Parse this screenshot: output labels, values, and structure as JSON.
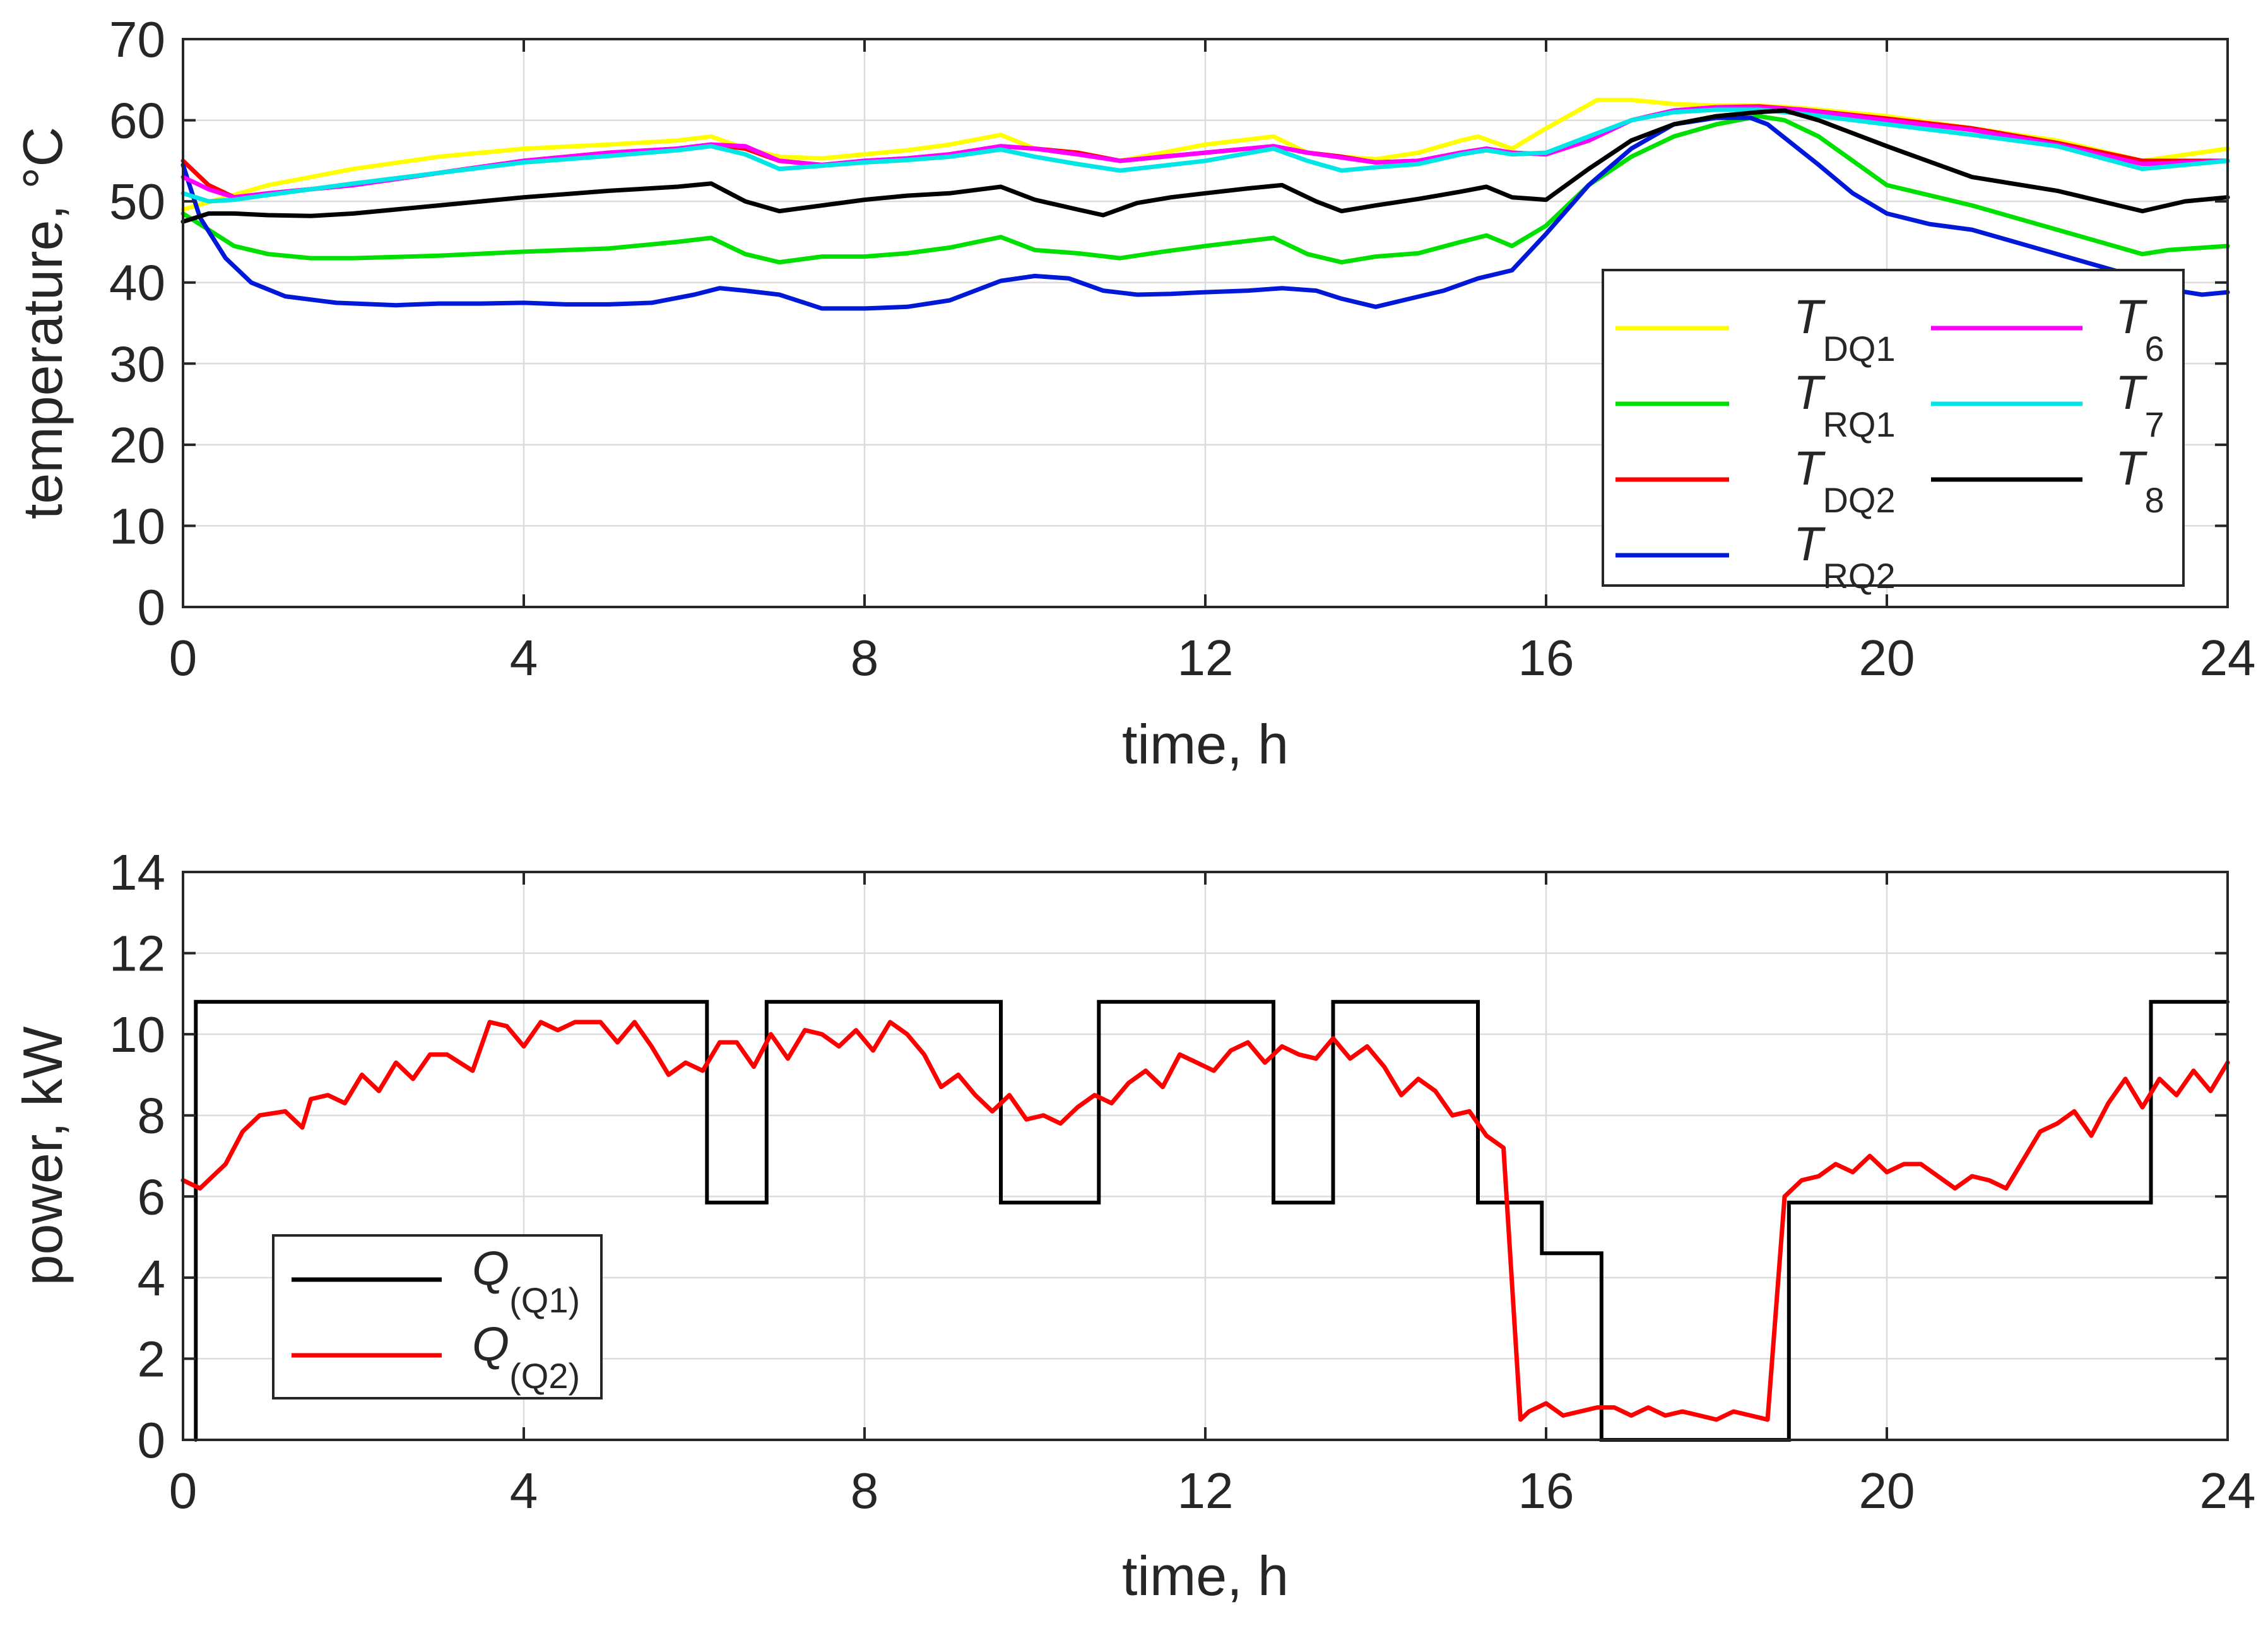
{
  "chart_data": [
    {
      "type": "line",
      "xlabel": "time, h",
      "ylabel": "temperature, °C",
      "xlim": [
        0,
        24
      ],
      "ylim": [
        0,
        70
      ],
      "xticks": [
        "0",
        "4",
        "8",
        "12",
        "16",
        "20",
        "24"
      ],
      "yticks": [
        "0",
        "10",
        "20",
        "30",
        "40",
        "50",
        "60",
        "70"
      ],
      "grid": true,
      "legend_position": "lower-right",
      "series": [
        {
          "name": "T",
          "sub": "DQ1",
          "color": "#ffff00",
          "x": [
            0,
            0.5,
            1,
            2,
            3,
            4,
            5,
            5.8,
            6.2,
            6.6,
            7,
            7.5,
            8,
            8.5,
            9,
            9.6,
            10,
            10.5,
            11,
            11.5,
            12,
            12.8,
            13.2,
            13.6,
            14,
            14.5,
            15,
            15.2,
            15.6,
            16,
            16.6,
            17,
            17.5,
            18,
            18.5,
            19,
            19.5,
            20,
            21,
            22,
            23,
            24
          ],
          "y": [
            49,
            50.5,
            52,
            54,
            55.5,
            56.5,
            57,
            57.5,
            58,
            56.5,
            55.5,
            55.3,
            55.8,
            56.3,
            57,
            58.2,
            56.5,
            56,
            55,
            56,
            57,
            58,
            56,
            55.5,
            55.2,
            56,
            57.5,
            58,
            56.5,
            59,
            62.5,
            62.5,
            62,
            61.8,
            61.8,
            61.5,
            61,
            60.5,
            59,
            57.5,
            55,
            56.5
          ]
        },
        {
          "name": "T",
          "sub": "RQ1",
          "color": "#00e000",
          "x": [
            0,
            0.3,
            0.6,
            1,
            1.5,
            2,
            3,
            4,
            5,
            5.8,
            6.2,
            6.6,
            7,
            7.5,
            8,
            8.5,
            9,
            9.6,
            10,
            10.5,
            11,
            11.5,
            12,
            12.8,
            13.2,
            13.6,
            14,
            14.5,
            15,
            15.3,
            15.6,
            16,
            16.5,
            17,
            17.5,
            18,
            18.5,
            18.8,
            19.2,
            19.6,
            20,
            21,
            22,
            23,
            23.3,
            24
          ],
          "y": [
            48.5,
            46.5,
            44.5,
            43.5,
            43,
            43,
            43.3,
            43.8,
            44.2,
            45,
            45.5,
            43.5,
            42.5,
            43.2,
            43.2,
            43.6,
            44.3,
            45.6,
            44,
            43.6,
            43,
            43.8,
            44.5,
            45.5,
            43.5,
            42.5,
            43.2,
            43.6,
            45,
            45.8,
            44.5,
            47,
            52,
            55.5,
            58,
            59.5,
            60.5,
            60,
            58,
            55,
            52,
            49.5,
            46.5,
            43.5,
            44,
            44.5
          ]
        },
        {
          "name": "T",
          "sub": "DQ2",
          "color": "#ff0000",
          "x": [
            0,
            0.3,
            0.6,
            1,
            2,
            3,
            4,
            5,
            5.8,
            6.2,
            6.6,
            7,
            7.5,
            8,
            8.5,
            9,
            9.6,
            10,
            10.5,
            11,
            11.5,
            12,
            12.8,
            13.2,
            13.6,
            14,
            14.5,
            15,
            15.3,
            15.6,
            16,
            16.5,
            17,
            17.5,
            18,
            18.5,
            19,
            20,
            21,
            22,
            23,
            24
          ],
          "y": [
            55,
            52,
            50.5,
            51,
            52,
            53.5,
            55,
            56,
            56.5,
            57,
            56.5,
            55,
            54.5,
            55,
            55.3,
            55.8,
            56.8,
            56.5,
            56,
            55,
            55.5,
            56,
            56.8,
            56,
            55.5,
            54.8,
            55,
            56,
            56.5,
            56,
            55.8,
            57.5,
            60,
            61.2,
            61.6,
            61.7,
            61.3,
            60.2,
            59,
            57.2,
            55,
            55
          ]
        },
        {
          "name": "T",
          "sub": "RQ2",
          "color": "#0018d8",
          "x": [
            0,
            0.2,
            0.5,
            0.8,
            1.2,
            1.8,
            2.5,
            3,
            3.5,
            4,
            4.5,
            5,
            5.5,
            6,
            6.3,
            6.6,
            7,
            7.5,
            8,
            8.5,
            9,
            9.6,
            10,
            10.4,
            10.8,
            11.2,
            11.6,
            12,
            12.5,
            12.9,
            13.3,
            13.6,
            14,
            14.4,
            14.8,
            15.2,
            15.6,
            16,
            16.5,
            17,
            17.5,
            18,
            18.4,
            18.6,
            18.9,
            19.2,
            19.6,
            20,
            20.5,
            21,
            21.5,
            22,
            22.5,
            23,
            23.4,
            23.7,
            24
          ],
          "y": [
            54.5,
            48,
            43,
            40,
            38.3,
            37.5,
            37.2,
            37.4,
            37.4,
            37.5,
            37.3,
            37.3,
            37.5,
            38.5,
            39.3,
            39,
            38.5,
            36.8,
            36.8,
            37,
            37.8,
            40.2,
            40.8,
            40.5,
            39,
            38.5,
            38.6,
            38.8,
            39,
            39.3,
            39,
            38,
            37,
            38,
            39,
            40.5,
            41.5,
            46,
            52,
            56.5,
            59.5,
            60.3,
            60.3,
            59.5,
            57,
            54.5,
            51,
            48.5,
            47.2,
            46.5,
            45,
            43.5,
            42,
            40.5,
            39,
            38.5,
            38.8
          ]
        },
        {
          "name": "T",
          "sub": "6",
          "color": "#ff00ff",
          "x": [
            0,
            0.3,
            0.6,
            1,
            2,
            3,
            4,
            5,
            5.8,
            6.2,
            6.6,
            7,
            7.5,
            8,
            8.5,
            9,
            9.6,
            10,
            10.5,
            11,
            11.5,
            12,
            12.8,
            13.2,
            13.6,
            14,
            14.5,
            15,
            15.3,
            15.6,
            16,
            16.5,
            17,
            17.5,
            18,
            18.5,
            19,
            20,
            21,
            22,
            23,
            24
          ],
          "y": [
            53,
            51.5,
            50.5,
            51,
            52,
            53.5,
            55,
            56,
            56.5,
            57,
            56.8,
            55,
            54.5,
            55,
            55.3,
            55.8,
            56.8,
            56.5,
            55.8,
            55,
            55.5,
            56,
            56.8,
            56,
            55.4,
            54.8,
            55,
            56,
            56.5,
            56,
            55.8,
            57.5,
            60,
            61.2,
            61.6,
            61.6,
            61.3,
            60,
            58.8,
            57,
            54.6,
            55
          ]
        },
        {
          "name": "T",
          "sub": "7",
          "color": "#00e5e5",
          "x": [
            0,
            0.3,
            0.6,
            1,
            2,
            3,
            4,
            5,
            5.8,
            6.2,
            6.6,
            7,
            7.5,
            8,
            8.5,
            9,
            9.6,
            10,
            10.5,
            11,
            11.5,
            12,
            12.8,
            13.2,
            13.6,
            14,
            14.5,
            15,
            15.3,
            15.6,
            16,
            16.5,
            17,
            17.5,
            18,
            18.5,
            19,
            20,
            21,
            22,
            23,
            24
          ],
          "y": [
            51,
            50,
            50.2,
            50.8,
            52.2,
            53.5,
            54.8,
            55.6,
            56.3,
            56.8,
            55.8,
            54,
            54.4,
            54.8,
            55.1,
            55.5,
            56.4,
            55.5,
            54.6,
            53.8,
            54.4,
            55,
            56.5,
            55,
            53.8,
            54.2,
            54.6,
            55.8,
            56.3,
            55.8,
            56,
            58,
            60,
            61,
            61.3,
            61.3,
            60.8,
            59.5,
            58.2,
            56.8,
            54,
            55
          ]
        },
        {
          "name": "T",
          "sub": "8",
          "color": "#000000",
          "x": [
            0,
            0.3,
            0.6,
            1,
            1.5,
            2,
            3,
            4,
            5,
            5.8,
            6.2,
            6.6,
            7,
            7.5,
            8,
            8.5,
            9,
            9.6,
            10,
            10.5,
            10.8,
            11.2,
            11.6,
            12,
            12.5,
            12.9,
            13.3,
            13.6,
            14,
            14.5,
            15,
            15.3,
            15.6,
            16,
            16.5,
            17,
            17.5,
            18,
            18.5,
            18.8,
            19.2,
            20,
            21,
            22,
            23,
            23.5,
            24
          ],
          "y": [
            47.5,
            48.5,
            48.5,
            48.3,
            48.2,
            48.5,
            49.5,
            50.5,
            51.3,
            51.8,
            52.2,
            50,
            48.8,
            49.5,
            50.2,
            50.7,
            51,
            51.8,
            50.2,
            49,
            48.3,
            49.8,
            50.5,
            51,
            51.6,
            52,
            50,
            48.8,
            49.5,
            50.3,
            51.2,
            51.8,
            50.5,
            50.2,
            54,
            57.5,
            59.5,
            60.5,
            61,
            61.2,
            60,
            56.8,
            53,
            51.3,
            48.8,
            50,
            50.5
          ]
        }
      ]
    },
    {
      "type": "line",
      "xlabel": "time, h",
      "ylabel": "power, kW",
      "xlim": [
        0,
        24
      ],
      "ylim": [
        0,
        14
      ],
      "xticks": [
        "0",
        "4",
        "8",
        "12",
        "16",
        "20",
        "24"
      ],
      "yticks": [
        "0",
        "2",
        "4",
        "6",
        "8",
        "10",
        "12",
        "14"
      ],
      "grid": true,
      "legend_position": "lower-left",
      "series": [
        {
          "name": "Q",
          "sub": "(Q1)",
          "color": "#000000",
          "drawstyle": "steps",
          "x": [
            0.15,
            0.15,
            6.15,
            6.15,
            6.85,
            6.85,
            9.6,
            9.6,
            10.75,
            10.75,
            12.8,
            12.8,
            13.5,
            13.5,
            15.2,
            15.2,
            15.95,
            15.95,
            16.65,
            16.65,
            18.85,
            18.85,
            23.1,
            23.1,
            24
          ],
          "y": [
            0,
            10.8,
            10.8,
            5.85,
            5.85,
            10.8,
            10.8,
            5.85,
            5.85,
            10.8,
            10.8,
            5.85,
            5.85,
            10.8,
            10.8,
            5.85,
            5.85,
            4.6,
            4.6,
            0,
            0,
            5.85,
            5.85,
            10.8,
            10.8
          ]
        },
        {
          "name": "Q",
          "sub": "(Q2)",
          "color": "#ff0000",
          "x": [
            0,
            0.2,
            0.5,
            0.7,
            0.9,
            1.2,
            1.4,
            1.5,
            1.7,
            1.9,
            2.1,
            2.3,
            2.5,
            2.7,
            2.9,
            3.1,
            3.4,
            3.6,
            3.8,
            4,
            4.2,
            4.4,
            4.6,
            4.9,
            5.1,
            5.3,
            5.5,
            5.7,
            5.9,
            6.1,
            6.3,
            6.5,
            6.7,
            6.9,
            7.1,
            7.3,
            7.5,
            7.7,
            7.9,
            8.1,
            8.3,
            8.5,
            8.7,
            8.9,
            9.1,
            9.3,
            9.5,
            9.7,
            9.9,
            10.1,
            10.3,
            10.5,
            10.7,
            10.9,
            11.1,
            11.3,
            11.5,
            11.7,
            11.9,
            12.1,
            12.3,
            12.5,
            12.7,
            12.9,
            13.1,
            13.3,
            13.5,
            13.7,
            13.9,
            14.1,
            14.3,
            14.5,
            14.7,
            14.9,
            15.1,
            15.3,
            15.5,
            15.7,
            15.8,
            16,
            16.2,
            16.4,
            16.6,
            16.8,
            17,
            17.2,
            17.4,
            17.6,
            17.8,
            18,
            18.2,
            18.4,
            18.6,
            18.8,
            19,
            19.2,
            19.4,
            19.6,
            19.8,
            20,
            20.2,
            20.4,
            20.6,
            20.8,
            21,
            21.2,
            21.4,
            21.6,
            21.8,
            22,
            22.2,
            22.4,
            22.6,
            22.8,
            23,
            23.2,
            23.4,
            23.6,
            23.8,
            24
          ],
          "y": [
            6.4,
            6.2,
            6.8,
            7.6,
            8,
            8.1,
            7.7,
            8.4,
            8.5,
            8.3,
            9,
            8.6,
            9.3,
            8.9,
            9.5,
            9.5,
            9.1,
            10.3,
            10.2,
            9.7,
            10.3,
            10.1,
            10.3,
            10.3,
            9.8,
            10.3,
            9.7,
            9,
            9.3,
            9.1,
            9.8,
            9.8,
            9.2,
            10,
            9.4,
            10.1,
            10,
            9.7,
            10.1,
            9.6,
            10.3,
            10,
            9.5,
            8.7,
            9,
            8.5,
            8.1,
            8.5,
            7.9,
            8,
            7.8,
            8.2,
            8.5,
            8.3,
            8.8,
            9.1,
            8.7,
            9.5,
            9.3,
            9.1,
            9.6,
            9.8,
            9.3,
            9.7,
            9.5,
            9.4,
            9.9,
            9.4,
            9.7,
            9.2,
            8.5,
            8.9,
            8.6,
            8,
            8.1,
            7.5,
            7.2,
            0.5,
            0.7,
            0.9,
            0.6,
            0.7,
            0.8,
            0.8,
            0.6,
            0.8,
            0.6,
            0.7,
            0.6,
            0.5,
            0.7,
            0.6,
            0.5,
            6,
            6.4,
            6.5,
            6.8,
            6.6,
            7,
            6.6,
            6.8,
            6.8,
            6.5,
            6.2,
            6.5,
            6.4,
            6.2,
            6.9,
            7.6,
            7.8,
            8.1,
            7.5,
            8.3,
            8.9,
            8.2,
            8.9,
            8.5,
            9.1,
            8.6,
            9.3
          ]
        }
      ]
    }
  ]
}
